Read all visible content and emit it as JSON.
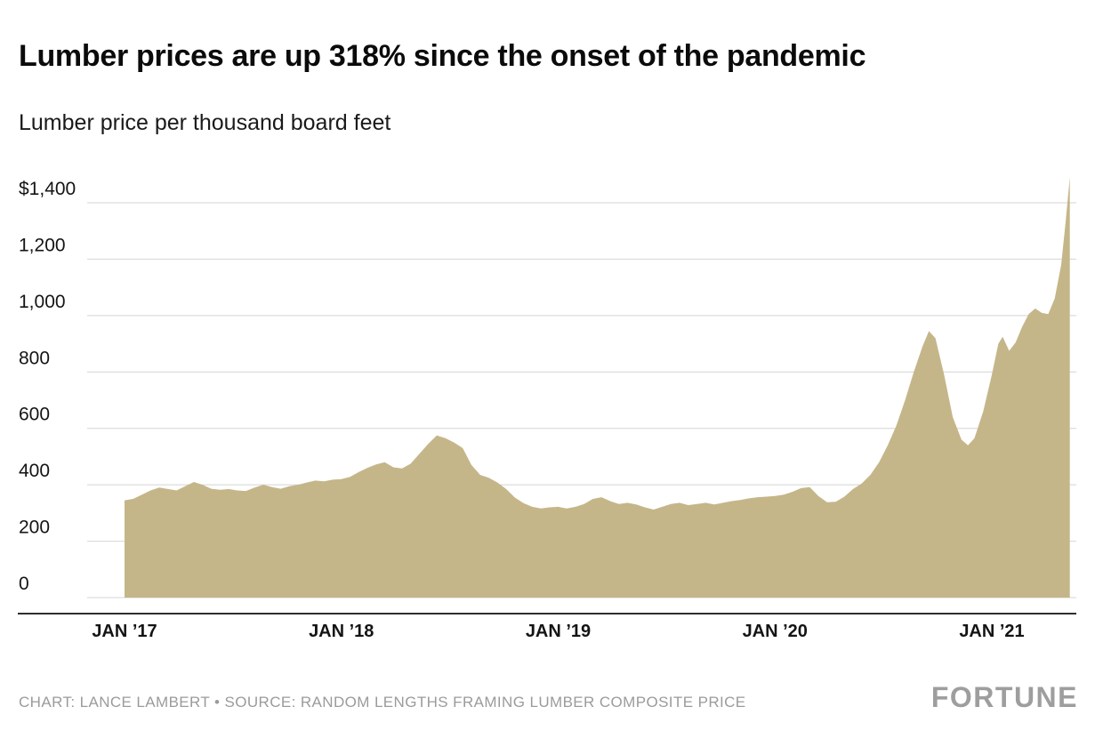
{
  "header": {
    "title": "Lumber prices are up 318% since the onset of the pandemic",
    "subtitle": "Lumber price per thousand board feet"
  },
  "footer": {
    "credit": "CHART: LANCE LAMBERT • SOURCE: RANDOM LENGTHS FRAMING LUMBER COMPOSITE PRICE",
    "brand": "FORTUNE"
  },
  "chart_data": {
    "type": "area",
    "title": "Lumber prices are up 318% since the onset of the pandemic",
    "xlabel": "",
    "ylabel": "Lumber price per thousand board feet ($)",
    "ylim": [
      0,
      1500
    ],
    "xlim": [
      2016.9,
      2021.45
    ],
    "grid": true,
    "legend": false,
    "fill_color": "#c5b689",
    "gridline_color": "#d4d4d4",
    "axis_color": "#2e2e2e",
    "label_color": "#141414",
    "yticks": [
      0,
      200,
      400,
      600,
      800,
      1000,
      1200,
      1400
    ],
    "ytick_labels": [
      "0",
      "200",
      "400",
      "600",
      "800",
      "1,000",
      "1,200",
      "$1,400"
    ],
    "xticks": [
      2017,
      2018,
      2019,
      2020,
      2021
    ],
    "xtick_labels": [
      "JAN ’17",
      "JAN ’18",
      "JAN ’19",
      "JAN ’20",
      "JAN ’21"
    ],
    "points": [
      [
        2017.0,
        345
      ],
      [
        2017.04,
        350
      ],
      [
        2017.08,
        365
      ],
      [
        2017.12,
        380
      ],
      [
        2017.16,
        390
      ],
      [
        2017.2,
        385
      ],
      [
        2017.24,
        380
      ],
      [
        2017.28,
        395
      ],
      [
        2017.32,
        410
      ],
      [
        2017.36,
        400
      ],
      [
        2017.4,
        386
      ],
      [
        2017.44,
        382
      ],
      [
        2017.48,
        385
      ],
      [
        2017.52,
        380
      ],
      [
        2017.56,
        378
      ],
      [
        2017.6,
        390
      ],
      [
        2017.64,
        400
      ],
      [
        2017.68,
        392
      ],
      [
        2017.72,
        386
      ],
      [
        2017.76,
        395
      ],
      [
        2017.8,
        400
      ],
      [
        2017.84,
        408
      ],
      [
        2017.88,
        415
      ],
      [
        2017.92,
        412
      ],
      [
        2017.96,
        418
      ],
      [
        2018.0,
        420
      ],
      [
        2018.04,
        428
      ],
      [
        2018.08,
        445
      ],
      [
        2018.12,
        460
      ],
      [
        2018.16,
        472
      ],
      [
        2018.2,
        480
      ],
      [
        2018.24,
        462
      ],
      [
        2018.28,
        458
      ],
      [
        2018.32,
        475
      ],
      [
        2018.36,
        510
      ],
      [
        2018.4,
        545
      ],
      [
        2018.44,
        575
      ],
      [
        2018.48,
        565
      ],
      [
        2018.52,
        550
      ],
      [
        2018.56,
        530
      ],
      [
        2018.6,
        470
      ],
      [
        2018.64,
        435
      ],
      [
        2018.68,
        425
      ],
      [
        2018.72,
        408
      ],
      [
        2018.76,
        385
      ],
      [
        2018.8,
        355
      ],
      [
        2018.84,
        335
      ],
      [
        2018.88,
        322
      ],
      [
        2018.92,
        316
      ],
      [
        2018.96,
        320
      ],
      [
        2019.0,
        322
      ],
      [
        2019.04,
        316
      ],
      [
        2019.08,
        322
      ],
      [
        2019.12,
        332
      ],
      [
        2019.16,
        350
      ],
      [
        2019.2,
        356
      ],
      [
        2019.24,
        342
      ],
      [
        2019.28,
        332
      ],
      [
        2019.32,
        336
      ],
      [
        2019.36,
        330
      ],
      [
        2019.4,
        320
      ],
      [
        2019.44,
        312
      ],
      [
        2019.48,
        322
      ],
      [
        2019.52,
        332
      ],
      [
        2019.56,
        336
      ],
      [
        2019.6,
        328
      ],
      [
        2019.64,
        332
      ],
      [
        2019.68,
        336
      ],
      [
        2019.72,
        330
      ],
      [
        2019.76,
        336
      ],
      [
        2019.8,
        342
      ],
      [
        2019.84,
        346
      ],
      [
        2019.88,
        352
      ],
      [
        2019.92,
        356
      ],
      [
        2019.96,
        358
      ],
      [
        2020.0,
        360
      ],
      [
        2020.04,
        365
      ],
      [
        2020.08,
        375
      ],
      [
        2020.12,
        388
      ],
      [
        2020.16,
        392
      ],
      [
        2020.2,
        360
      ],
      [
        2020.24,
        338
      ],
      [
        2020.28,
        340
      ],
      [
        2020.32,
        358
      ],
      [
        2020.36,
        385
      ],
      [
        2020.4,
        405
      ],
      [
        2020.44,
        435
      ],
      [
        2020.48,
        480
      ],
      [
        2020.52,
        540
      ],
      [
        2020.56,
        610
      ],
      [
        2020.6,
        700
      ],
      [
        2020.64,
        800
      ],
      [
        2020.68,
        890
      ],
      [
        2020.71,
        945
      ],
      [
        2020.74,
        920
      ],
      [
        2020.78,
        790
      ],
      [
        2020.82,
        640
      ],
      [
        2020.86,
        560
      ],
      [
        2020.89,
        540
      ],
      [
        2020.92,
        565
      ],
      [
        2020.96,
        660
      ],
      [
        2021.0,
        790
      ],
      [
        2021.03,
        900
      ],
      [
        2021.05,
        925
      ],
      [
        2021.08,
        875
      ],
      [
        2021.11,
        905
      ],
      [
        2021.14,
        960
      ],
      [
        2021.17,
        1005
      ],
      [
        2021.2,
        1025
      ],
      [
        2021.23,
        1010
      ],
      [
        2021.26,
        1005
      ],
      [
        2021.29,
        1060
      ],
      [
        2021.32,
        1180
      ],
      [
        2021.34,
        1330
      ],
      [
        2021.36,
        1490
      ]
    ]
  }
}
